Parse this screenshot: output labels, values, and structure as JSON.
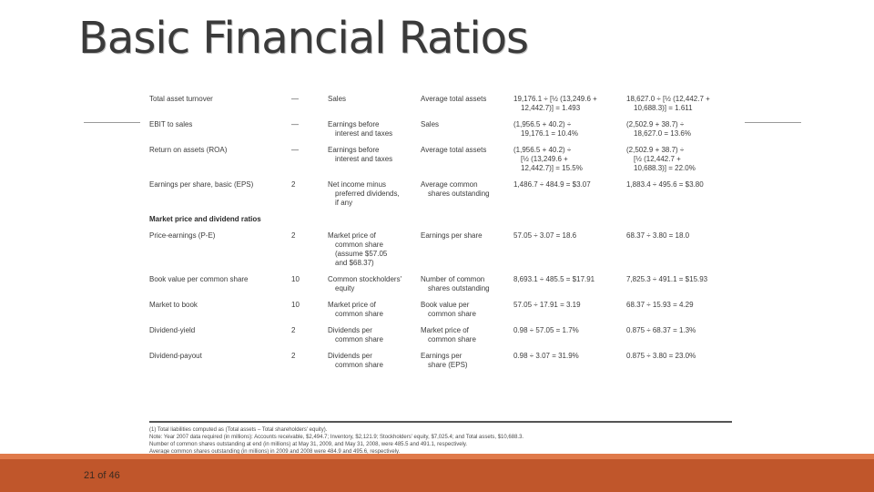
{
  "slide": {
    "title": "Basic Financial Ratios",
    "page_label": "21 of 46"
  },
  "rows": [
    {
      "name": "Total asset turnover",
      "note": "—",
      "num": [
        "Sales"
      ],
      "den": [
        "Average total assets"
      ],
      "c1": [
        "19,176.1 ÷ [½ (13,249.6 +",
        "12,442.7)] = 1.493"
      ],
      "c2": [
        "18,627.0 ÷ [½ (12,442.7 +",
        "10,688.3)] = 1.611"
      ]
    },
    {
      "name": "EBIT to sales",
      "note": "—",
      "num": [
        "Earnings before",
        "interest and taxes"
      ],
      "den": [
        "Sales"
      ],
      "c1": [
        "(1,956.5 + 40.2) ÷",
        "19,176.1 = 10.4%"
      ],
      "c2": [
        "(2,502.9 + 38.7) ÷",
        "18,627.0 = 13.6%"
      ]
    },
    {
      "name": "Return on assets (ROA)",
      "note": "—",
      "num": [
        "Earnings before",
        "interest and taxes"
      ],
      "den": [
        "Average total assets"
      ],
      "c1": [
        "(1,956.5 + 40.2) ÷",
        "[½ (13,249.6 +",
        "12,442.7)] = 15.5%"
      ],
      "c2": [
        "(2,502.9 + 38.7) ÷",
        "[½ (12,442.7 +",
        "10,688.3)] = 22.0%"
      ]
    },
    {
      "name": "Earnings per share, basic (EPS)",
      "note": "2",
      "num": [
        "Net income minus",
        "preferred dividends,",
        "if any"
      ],
      "den": [
        "Average common",
        "shares outstanding"
      ],
      "c1": [
        "1,486.7 ÷ 484.9 = $3.07"
      ],
      "c2": [
        "1,883.4 ÷ 495.6 = $3.80"
      ]
    }
  ],
  "section_market": "Market price and dividend ratios",
  "rows2": [
    {
      "name": "Price-earnings (P-E)",
      "note": "2",
      "num": [
        "Market price of",
        "common share",
        "(assume $57.05",
        "and $68.37)"
      ],
      "den": [
        "Earnings per share"
      ],
      "c1": [
        "57.05 ÷ 3.07 = 18.6"
      ],
      "c2": [
        "68.37 ÷ 3.80 = 18.0"
      ]
    },
    {
      "name": "Book value per common share",
      "note": "10",
      "num": [
        "Common stockholders'",
        "equity"
      ],
      "den": [
        "Number of common",
        "shares outstanding"
      ],
      "c1": [
        "8,693.1 ÷ 485.5 = $17.91"
      ],
      "c2": [
        "7,825.3 ÷ 491.1 = $15.93"
      ]
    },
    {
      "name": "Market to book",
      "note": "10",
      "num": [
        "Market price of",
        "common share"
      ],
      "den": [
        "Book value per",
        "common share"
      ],
      "c1": [
        "57.05 ÷ 17.91 = 3.19"
      ],
      "c2": [
        "68.37 ÷ 15.93 = 4.29"
      ]
    },
    {
      "name": "Dividend-yield",
      "note": "2",
      "num": [
        "Dividends per",
        "common share"
      ],
      "den": [
        "Market price of",
        "common share"
      ],
      "c1": [
        "0.98 ÷ 57.05 = 1.7%"
      ],
      "c2": [
        "0.875 ÷ 68.37 = 1.3%"
      ]
    },
    {
      "name": "Dividend-payout",
      "note": "2",
      "num": [
        "Dividends per",
        "common share"
      ],
      "den": [
        "Earnings per",
        "share (EPS)"
      ],
      "c1": [
        "0.98 ÷ 3.07 = 31.9%"
      ],
      "c2": [
        "0.875 ÷ 3.80 = 23.0%"
      ]
    }
  ],
  "footnotes": [
    "(1) Total liabilities computed as (Total assets – Total shareholders' equity).",
    "Note: Year 2007 data required (in millions): Accounts receivable, $2,494.7; Inventory, $2,121.9; Stockholders' equity, $7,025.4; and Total assets, $10,688.3.",
    "Number of common shares outstanding at end (in millions) at May 31, 2009, and May 31, 2008, were 485.5 and 491.1, respectively.",
    "Average common shares outstanding (in millions) in 2009 and 2008 were 484.9 and 495.6, respectively."
  ]
}
